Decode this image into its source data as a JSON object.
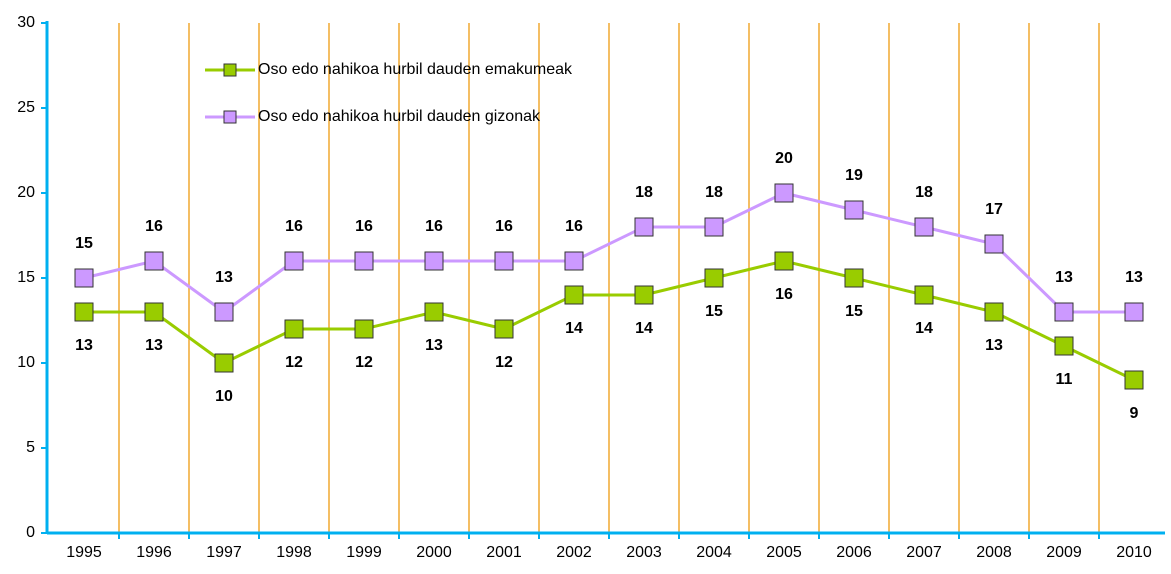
{
  "chart_data": {
    "type": "line",
    "categories": [
      "1995",
      "1996",
      "1997",
      "1998",
      "1999",
      "2000",
      "2001",
      "2002",
      "2003",
      "2004",
      "2005",
      "2006",
      "2007",
      "2008",
      "2009",
      "2010"
    ],
    "series": [
      {
        "name": "Oso edo nahikoa hurbil dauden emakumeak",
        "color": "#99cc00",
        "label_position": "below",
        "values": [
          13,
          13,
          10,
          12,
          12,
          13,
          12,
          14,
          14,
          15,
          16,
          15,
          14,
          13,
          11,
          9
        ]
      },
      {
        "name": "Oso edo nahikoa hurbil dauden gizonak",
        "color": "#cc99ff",
        "label_position": "above",
        "values": [
          15,
          16,
          13,
          16,
          16,
          16,
          16,
          16,
          18,
          18,
          20,
          19,
          18,
          17,
          13,
          13
        ]
      }
    ],
    "ylim": [
      0,
      30
    ],
    "yticks": [
      0,
      5,
      10,
      15,
      20,
      25,
      30
    ],
    "grid": true,
    "legend": "top-left"
  }
}
